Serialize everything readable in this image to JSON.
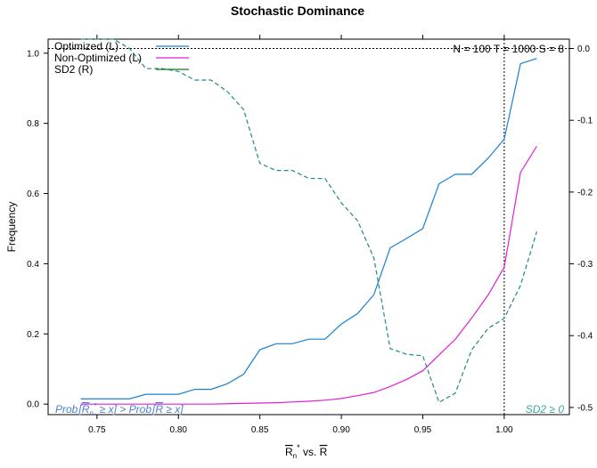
{
  "chart_data": {
    "type": "line",
    "title": "Stochastic Dominance",
    "ylabel": "Frequency",
    "xlabel": {
      "base": "R",
      "sub": "n",
      "sup": "*",
      "vs": " vs. ",
      "base2": "R"
    },
    "xlim": [
      0.72,
      1.04
    ],
    "ylim_left": [
      -0.03,
      1.04
    ],
    "ylim_right": [
      -0.51,
      0.013
    ],
    "x_ticks": [
      0.75,
      0.8,
      0.85,
      0.9,
      0.95,
      1.0
    ],
    "x_tick_labels": [
      "0.75",
      "0.80",
      "0.85",
      "0.90",
      "0.95",
      "1.00"
    ],
    "y_left_ticks": [
      0.0,
      0.2,
      0.4,
      0.6,
      0.8,
      1.0
    ],
    "y_left_tick_labels": [
      "0.0",
      "0.2",
      "0.4",
      "0.6",
      "0.8",
      "1.0"
    ],
    "y_right_ticks": [
      0.0,
      -0.1,
      -0.2,
      -0.3,
      -0.4,
      -0.5
    ],
    "y_right_tick_labels": [
      "0.0",
      "-0.1",
      "-0.2",
      "-0.3",
      "-0.4",
      "-0.5"
    ],
    "grid": false,
    "legend_position": "top-left",
    "info_text": "N = 100  T = 1000  S = 8",
    "annotation_left": {
      "prob1": "Prob",
      "r1": "R",
      "sub1": "n",
      "sup1": "*",
      "op1": " ≥ x",
      "gt": " > ",
      "prob2": "Prob",
      "r2": "R",
      "op2": " ≥ x"
    },
    "annotation_right": "SD2 ≥ 0",
    "reference_lines": {
      "vertical_x": 1.0,
      "horizontal_right_y": 0.0
    },
    "x": [
      0.74,
      0.75,
      0.76,
      0.77,
      0.78,
      0.79,
      0.8,
      0.81,
      0.82,
      0.83,
      0.84,
      0.85,
      0.86,
      0.87,
      0.88,
      0.89,
      0.9,
      0.91,
      0.92,
      0.93,
      0.94,
      0.95,
      0.96,
      0.97,
      0.98,
      0.99,
      1.0,
      1.01,
      1.02
    ],
    "series": [
      {
        "name": "Optimized (L)",
        "axis": "left",
        "color": "#1a80d0",
        "dash": "solid",
        "values": [
          0.015,
          0.015,
          0.015,
          0.015,
          0.028,
          0.028,
          0.028,
          0.042,
          0.042,
          0.058,
          0.085,
          0.155,
          0.172,
          0.172,
          0.185,
          0.185,
          0.228,
          0.258,
          0.312,
          0.445,
          0.472,
          0.5,
          0.628,
          0.655,
          0.655,
          0.7,
          0.755,
          0.97,
          0.985
        ]
      },
      {
        "name": "Non-Optimized (L)",
        "axis": "left",
        "color": "#e020d8",
        "dash": "solid",
        "values": [
          0.0,
          0.0,
          0.0,
          0.0,
          0.0,
          0.0,
          0.0,
          0.0,
          0.0,
          0.001,
          0.002,
          0.003,
          0.004,
          0.006,
          0.008,
          0.011,
          0.016,
          0.024,
          0.033,
          0.05,
          0.07,
          0.095,
          0.14,
          0.185,
          0.245,
          0.31,
          0.39,
          0.66,
          0.735
        ]
      },
      {
        "name": "SD2 (R)",
        "axis": "right",
        "color": "#1f8a8a",
        "legend_color": "#157a20",
        "dash": "dashed",
        "values": [
          0.013,
          0.013,
          0.013,
          0.0,
          -0.028,
          -0.028,
          -0.032,
          -0.044,
          -0.044,
          -0.06,
          -0.085,
          -0.16,
          -0.17,
          -0.17,
          -0.181,
          -0.181,
          -0.215,
          -0.24,
          -0.292,
          -0.418,
          -0.426,
          -0.428,
          -0.493,
          -0.48,
          -0.42,
          -0.39,
          -0.376,
          -0.33,
          -0.255
        ]
      }
    ]
  }
}
